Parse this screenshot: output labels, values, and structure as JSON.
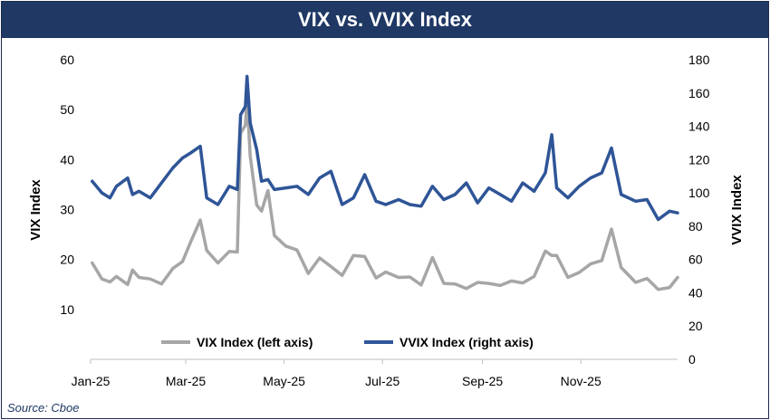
{
  "chart_data": {
    "type": "line",
    "title": "VIX vs. VVIX Index",
    "source": "Source: Cboe",
    "ylabel_left": "VIX Index",
    "ylabel_right": "VVIX Index",
    "ylim_left": [
      0,
      60
    ],
    "ylim_right": [
      0,
      180
    ],
    "yticks_left": [
      "10",
      "20",
      "30",
      "40",
      "50",
      "60"
    ],
    "yticks_right": [
      "0",
      "20",
      "40",
      "60",
      "80",
      "100",
      "120",
      "140",
      "160",
      "180"
    ],
    "xticks": [
      "Jan-25",
      "Mar-25",
      "May-25",
      "Jul-25",
      "Sep-25",
      "Nov-25"
    ],
    "legend_position": "bottom-center",
    "x": [
      "2025-01-02",
      "2025-01-08",
      "2025-01-13",
      "2025-01-17",
      "2025-01-24",
      "2025-01-27",
      "2025-01-31",
      "2025-02-07",
      "2025-02-14",
      "2025-02-21",
      "2025-02-27",
      "2025-03-04",
      "2025-03-10",
      "2025-03-14",
      "2025-03-21",
      "2025-03-28",
      "2025-04-02",
      "2025-04-04",
      "2025-04-07",
      "2025-04-08",
      "2025-04-10",
      "2025-04-14",
      "2025-04-17",
      "2025-04-21",
      "2025-04-25",
      "2025-05-02",
      "2025-05-09",
      "2025-05-16",
      "2025-05-23",
      "2025-05-30",
      "2025-06-06",
      "2025-06-13",
      "2025-06-20",
      "2025-06-27",
      "2025-07-03",
      "2025-07-11",
      "2025-07-18",
      "2025-07-25",
      "2025-08-01",
      "2025-08-08",
      "2025-08-15",
      "2025-08-22",
      "2025-08-29",
      "2025-09-05",
      "2025-09-12",
      "2025-09-19",
      "2025-09-26",
      "2025-10-03",
      "2025-10-10",
      "2025-10-14",
      "2025-10-17",
      "2025-10-24",
      "2025-10-31",
      "2025-11-07",
      "2025-11-14",
      "2025-11-20",
      "2025-11-26",
      "2025-12-05",
      "2025-12-12",
      "2025-12-19",
      "2025-12-26",
      "2025-12-31"
    ],
    "series": [
      {
        "name": "VIX Index (left axis)",
        "color": "#a6a6a6",
        "axis": "left",
        "values": [
          19.3,
          16.1,
          15.5,
          16.6,
          15.0,
          17.9,
          16.4,
          16.1,
          15.1,
          18.2,
          19.6,
          23.5,
          27.9,
          21.8,
          19.3,
          21.6,
          21.5,
          45.3,
          46.9,
          52.3,
          40.7,
          30.9,
          29.7,
          33.8,
          24.8,
          22.7,
          21.9,
          17.2,
          20.3,
          18.6,
          16.8,
          20.8,
          20.6,
          16.3,
          17.5,
          16.4,
          16.5,
          14.9,
          20.4,
          15.2,
          15.1,
          14.2,
          15.4,
          15.2,
          14.8,
          15.7,
          15.3,
          16.6,
          21.7,
          20.8,
          20.8,
          16.4,
          17.4,
          19.1,
          19.8,
          26.1,
          18.4,
          15.4,
          16.2,
          14.0,
          14.4,
          16.4
        ]
      },
      {
        "name": "VVIX Index (right axis)",
        "color": "#2f5597",
        "axis": "right",
        "values": [
          107,
          100,
          97,
          104,
          109,
          99,
          101,
          97,
          106,
          115,
          121,
          124,
          128,
          97,
          93,
          104,
          102,
          147,
          152,
          170,
          142,
          126,
          107,
          108,
          102,
          103,
          104,
          99,
          109,
          113,
          93,
          97,
          111,
          95,
          93,
          96,
          93,
          92,
          104,
          96,
          99,
          106,
          94,
          103,
          99,
          95,
          106,
          101,
          112,
          135,
          103,
          97,
          104,
          109,
          112,
          127,
          99,
          95,
          96,
          84,
          89,
          88
        ]
      }
    ]
  }
}
